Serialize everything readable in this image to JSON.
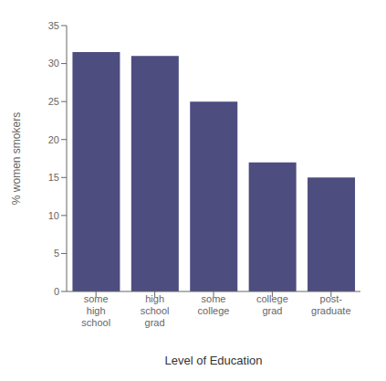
{
  "chart_data": {
    "type": "bar",
    "categories": [
      "some\nhigh\nschool",
      "high\nschool\ngrad",
      "some\ncollege",
      "college\ngrad",
      "post-\ngraduate"
    ],
    "values": [
      31.5,
      31.0,
      25.0,
      17.0,
      15.0
    ],
    "color": "#4d4d80",
    "xlabel": "Level of Education",
    "ylabel": "% women smokers",
    "ylim": [
      0,
      35
    ],
    "yticks": [
      0,
      5,
      10,
      15,
      20,
      25,
      30,
      35
    ],
    "grid": false
  }
}
